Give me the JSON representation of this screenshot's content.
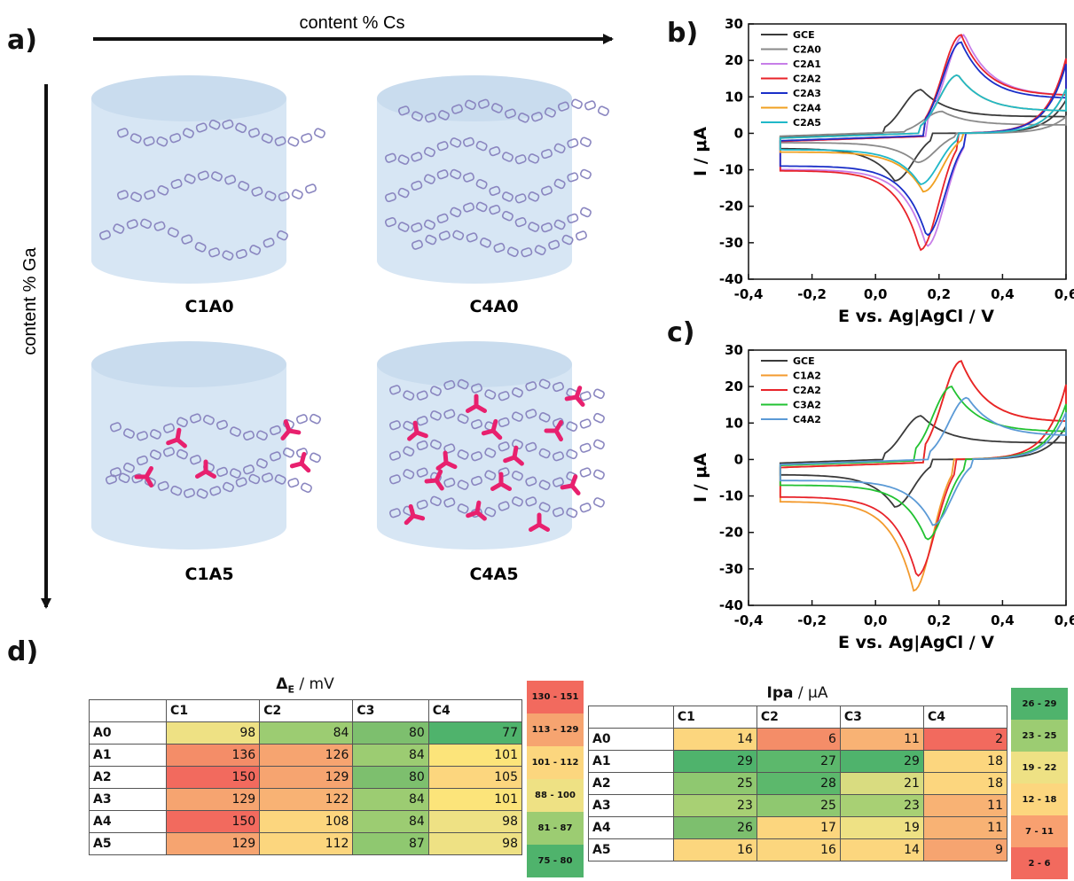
{
  "panel_labels": {
    "a": "a)",
    "b": "b)",
    "c": "c)",
    "d": "d)"
  },
  "schematic": {
    "x_arrow_label": "content % Cs",
    "y_arrow_label": "content % Ga",
    "samples": [
      "C1A0",
      "C4A0",
      "C1A5",
      "C4A5"
    ]
  },
  "colors": {
    "GCE": "#3a3a3a",
    "C2A0": "#8a8a8a",
    "C2A1": "#c77ee8",
    "C2A2": "#e8232a",
    "C2A3": "#1a2fc8",
    "C2A4": "#f0a020",
    "C2A5": "#20b8c8",
    "C1A2": "#f39a2e",
    "C3A2": "#22c232",
    "C4A2": "#5b9ad6",
    "cylinder": "#d7e6f4",
    "chain": "#8a86c0",
    "crosslinker": "#e8206e"
  },
  "chart_data": [
    {
      "type": "line",
      "panel": "b",
      "xlabel": "E vs. Ag|AgCl / V",
      "ylabel": "I / μA",
      "xlim": [
        -0.4,
        0.6
      ],
      "ylim": [
        -40,
        30
      ],
      "xticks": [
        "-0,4",
        "-0,2",
        "0,0",
        "0,2",
        "0,4",
        "0,6"
      ],
      "yticks": [
        "30",
        "20",
        "10",
        "0",
        "-10",
        "-20",
        "-30",
        "-40"
      ],
      "legend_position": "top-left",
      "series": [
        {
          "name": "GCE",
          "Epa": 0.145,
          "Ipa": 12,
          "Epc": 0.06,
          "Ipc": -13
        },
        {
          "name": "C2A0",
          "Epa": 0.21,
          "Ipa": 6,
          "Epc": 0.13,
          "Ipc": -8
        },
        {
          "name": "C2A1",
          "Epa": 0.28,
          "Ipa": 27,
          "Epc": 0.16,
          "Ipc": -31
        },
        {
          "name": "C2A2",
          "Epa": 0.27,
          "Ipa": 27,
          "Epc": 0.14,
          "Ipc": -32
        },
        {
          "name": "C2A3",
          "Epa": 0.27,
          "Ipa": 25,
          "Epc": 0.16,
          "Ipc": -28
        },
        {
          "name": "C2A4",
          "Epa": 0.26,
          "Ipa": 16,
          "Epc": 0.15,
          "Ipc": -16
        },
        {
          "name": "C2A5",
          "Epa": 0.26,
          "Ipa": 16,
          "Epc": 0.14,
          "Ipc": -14
        }
      ]
    },
    {
      "type": "line",
      "panel": "c",
      "xlabel": "E vs. Ag|AgCl / V",
      "ylabel": "I / μA",
      "xlim": [
        -0.4,
        0.6
      ],
      "ylim": [
        -40,
        30
      ],
      "xticks": [
        "-0,4",
        "-0,2",
        "0,0",
        "0,2",
        "0,4",
        "0,6"
      ],
      "yticks": [
        "30",
        "20",
        "10",
        "0",
        "-10",
        "-20",
        "-30",
        "-40"
      ],
      "legend_position": "top-left",
      "series": [
        {
          "name": "GCE",
          "Epa": 0.145,
          "Ipa": 12,
          "Epc": 0.06,
          "Ipc": -13
        },
        {
          "name": "C1A2",
          "Epa": 0.27,
          "Ipa": 27,
          "Epc": 0.12,
          "Ipc": -36
        },
        {
          "name": "C2A2",
          "Epa": 0.27,
          "Ipa": 27,
          "Epc": 0.13,
          "Ipc": -32
        },
        {
          "name": "C3A2",
          "Epa": 0.24,
          "Ipa": 20,
          "Epc": 0.16,
          "Ipc": -22
        },
        {
          "name": "C4A2",
          "Epa": 0.29,
          "Ipa": 17,
          "Epc": 0.18,
          "Ipc": -18
        }
      ]
    },
    {
      "type": "table",
      "panel": "d",
      "title_prefix": "Δ",
      "title_sub": "E",
      "title_unit": " / mV",
      "columns": [
        "C1",
        "C2",
        "C3",
        "C4"
      ],
      "rows": [
        "A0",
        "A1",
        "A2",
        "A3",
        "A4",
        "A5"
      ],
      "values": [
        [
          98,
          84,
          80,
          77
        ],
        [
          136,
          126,
          84,
          101
        ],
        [
          150,
          129,
          80,
          105
        ],
        [
          129,
          122,
          84,
          101
        ],
        [
          150,
          108,
          84,
          98
        ],
        [
          129,
          112,
          87,
          98
        ]
      ],
      "scale": [
        {
          "label": "130 - 151",
          "color": "#f26a5e"
        },
        {
          "label": "113 - 129",
          "color": "#f6a470"
        },
        {
          "label": "101 - 112",
          "color": "#fcd67e"
        },
        {
          "label": "88 - 100",
          "color": "#eee184"
        },
        {
          "label": "81 - 87",
          "color": "#9ccc72"
        },
        {
          "label": "75 - 80",
          "color": "#4fb36c"
        }
      ],
      "cell_colors": [
        [
          "#eee184",
          "#9ccc72",
          "#7dbf6e",
          "#4fb36c"
        ],
        [
          "#f48d68",
          "#f6a470",
          "#9ccc72",
          "#fce47a"
        ],
        [
          "#f26a5e",
          "#f6a470",
          "#7dbf6e",
          "#fcd67e"
        ],
        [
          "#f6a470",
          "#f8b274",
          "#9ccc72",
          "#fce47a"
        ],
        [
          "#f26a5e",
          "#fcd67e",
          "#9ccc72",
          "#eee184"
        ],
        [
          "#f6a470",
          "#fcd67e",
          "#8fc870",
          "#eee184"
        ]
      ]
    },
    {
      "type": "table",
      "panel": "d",
      "title_prefix": "Ipa",
      "title_unit": " / μA",
      "columns": [
        "C1",
        "C2",
        "C3",
        "C4"
      ],
      "rows": [
        "A0",
        "A1",
        "A2",
        "A3",
        "A4",
        "A5"
      ],
      "values": [
        [
          14,
          6,
          11,
          2
        ],
        [
          29,
          27,
          29,
          18
        ],
        [
          25,
          28,
          21,
          18
        ],
        [
          23,
          25,
          23,
          11
        ],
        [
          26,
          17,
          19,
          11
        ],
        [
          16,
          16,
          14,
          9
        ]
      ],
      "scale": [
        {
          "label": "26 - 29",
          "color": "#4fb36c"
        },
        {
          "label": "23 - 25",
          "color": "#9ccc72"
        },
        {
          "label": "19 - 22",
          "color": "#eee184"
        },
        {
          "label": "12 - 18",
          "color": "#fcd67e"
        },
        {
          "label": "7 - 11",
          "color": "#f8a070"
        },
        {
          "label": "2 - 6",
          "color": "#f26a5e"
        }
      ],
      "cell_colors": [
        [
          "#fcd67e",
          "#f48d68",
          "#f8b274",
          "#f26a5e"
        ],
        [
          "#4fb36c",
          "#5cb86c",
          "#4fb36c",
          "#fcd67e"
        ],
        [
          "#8fc870",
          "#5cb86c",
          "#d9dc80",
          "#fcd67e"
        ],
        [
          "#a8d074",
          "#8fc870",
          "#a8d074",
          "#f8b274"
        ],
        [
          "#7dbf6e",
          "#fcd67e",
          "#eee184",
          "#f8b274"
        ],
        [
          "#fcd67e",
          "#fcd67e",
          "#fcd67e",
          "#f6a470"
        ]
      ]
    }
  ]
}
